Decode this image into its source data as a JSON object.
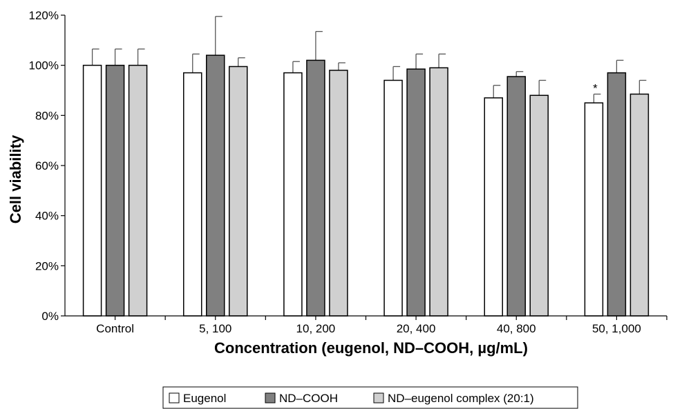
{
  "chart_data": {
    "type": "bar",
    "title": "",
    "xlabel": "Concentration (eugenol, ND–COOH, µg/mL)",
    "ylabel": "Cell viability",
    "ylim": [
      0,
      120
    ],
    "yticks": [
      "0%",
      "20%",
      "40%",
      "60%",
      "80%",
      "100%",
      "120%"
    ],
    "ytick_values": [
      0,
      20,
      40,
      60,
      80,
      100,
      120
    ],
    "grid": false,
    "legend_position": "bottom-center",
    "categories": [
      "Control",
      "5, 100",
      "10, 200",
      "20, 400",
      "40, 800",
      "50, 1,000"
    ],
    "series": [
      {
        "name": "Eugenol",
        "color": "#ffffff",
        "values": [
          100,
          97,
          97,
          94,
          87,
          85
        ],
        "errors": [
          6.5,
          7.5,
          4.5,
          5.5,
          5,
          3.5
        ]
      },
      {
        "name": "ND–COOH",
        "color": "#808080",
        "values": [
          100,
          104,
          102,
          98.5,
          95.5,
          97
        ],
        "errors": [
          6.5,
          15.5,
          11.5,
          6,
          2,
          5
        ]
      },
      {
        "name": "ND–eugenol complex (20:1)",
        "color": "#d0d0d0",
        "values": [
          100,
          99.5,
          98,
          99,
          88,
          88.5
        ],
        "errors": [
          6.5,
          3.5,
          3,
          5.5,
          6,
          5.5
        ]
      }
    ],
    "annotations": [
      {
        "text": "*",
        "category": "50, 1,000",
        "series": "Eugenol"
      }
    ]
  }
}
